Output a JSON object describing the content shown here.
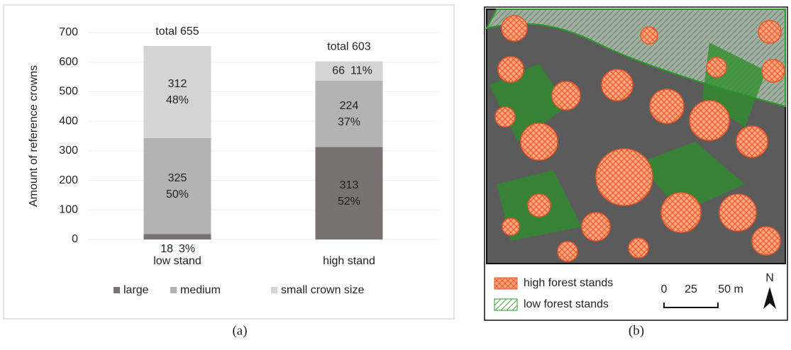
{
  "chart_data": {
    "type": "stacked_bar",
    "y_label": "Amount of reference crowns",
    "categories": [
      "low stand",
      "high stand"
    ],
    "series": [
      {
        "name": "large",
        "color": "#7a7172",
        "values": [
          18,
          313
        ],
        "percent_labels": [
          "3%",
          "52%"
        ]
      },
      {
        "name": "medium",
        "color": "#b3b3b3",
        "values": [
          325,
          224
        ],
        "percent_labels": [
          "50%",
          "37%"
        ]
      },
      {
        "name": "small crown size",
        "color": "#d4d4d4",
        "values": [
          312,
          66
        ],
        "percent_labels": [
          "48%",
          "11%"
        ]
      }
    ],
    "total_labels": [
      "total 655",
      "total 603"
    ],
    "ylim": [
      0,
      700
    ],
    "yticks": [
      0,
      100,
      200,
      300,
      400,
      500,
      600,
      700
    ],
    "grid": true,
    "legend": "bottom",
    "caption": "(a)"
  },
  "map": {
    "caption": "(b)",
    "legend": [
      "high forest stands",
      "low forest stands"
    ],
    "scale_labels": [
      "0",
      "25",
      "50 m"
    ],
    "north": "N"
  }
}
